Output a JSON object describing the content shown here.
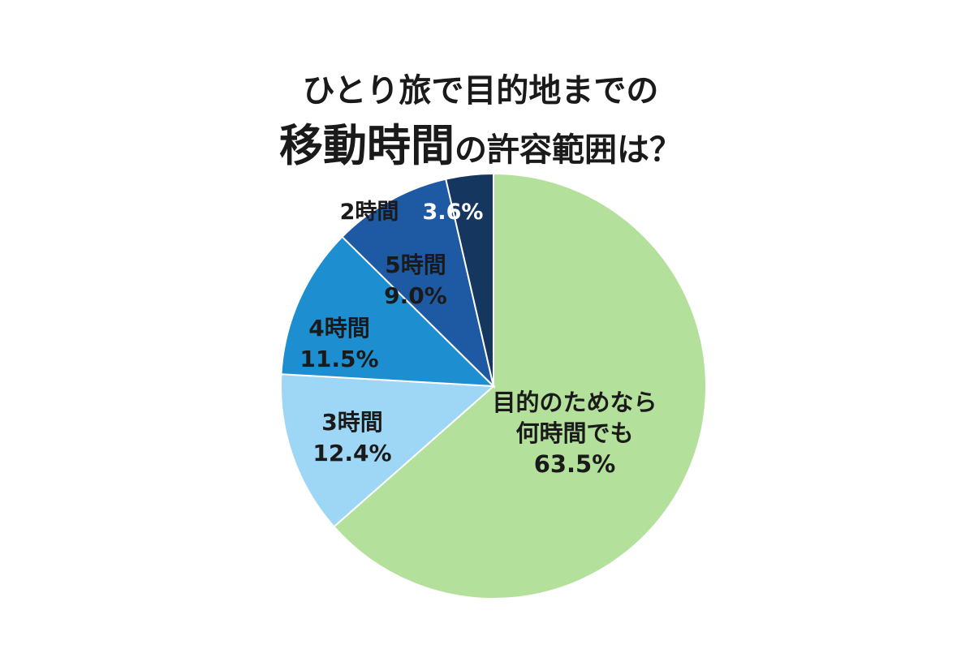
{
  "title": {
    "line1": "ひとり旅で目的地までの",
    "line2_big": "移動時間",
    "line2_small": "の許容範囲は？"
  },
  "chart_data": {
    "type": "pie",
    "start_angle_deg": 0,
    "direction": "clockwise",
    "slices": [
      {
        "label": "目的のためなら何時間でも",
        "label_lines": [
          "目的のためなら",
          "何時間でも"
        ],
        "value": 63.5,
        "value_text": "63.5%",
        "color": "#b3e09b"
      },
      {
        "label": "3時間",
        "label_lines": [
          "3時間"
        ],
        "value": 12.4,
        "value_text": "12.4%",
        "color": "#9ed6f5"
      },
      {
        "label": "4時間",
        "label_lines": [
          "4時間"
        ],
        "value": 11.5,
        "value_text": "11.5%",
        "color": "#1d8fd1"
      },
      {
        "label": "5時間",
        "label_lines": [
          "5時間"
        ],
        "value": 9.0,
        "value_text": "9.0%",
        "color": "#1e5aa3"
      },
      {
        "label": "2時間",
        "label_lines": [
          "2時間"
        ],
        "value": 3.6,
        "value_text": "3.6%",
        "color": "#15365f"
      }
    ]
  }
}
